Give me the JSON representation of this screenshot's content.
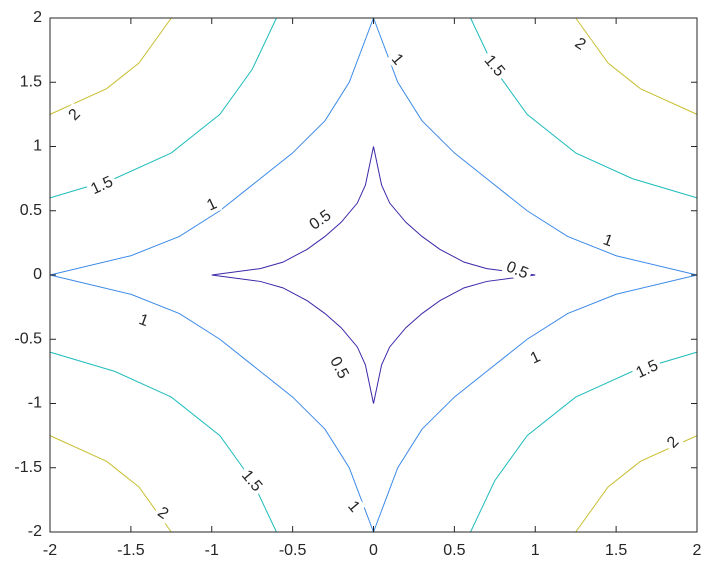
{
  "chart_data": {
    "type": "contour",
    "xlim": [
      -2,
      2
    ],
    "ylim": [
      -2,
      2
    ],
    "xticks": [
      -2,
      -1.5,
      -1,
      -0.5,
      0,
      0.5,
      1,
      1.5,
      2
    ],
    "yticks": [
      -2,
      -1.5,
      -1,
      -0.5,
      0,
      0.5,
      1,
      1.5,
      2
    ],
    "series": [
      {
        "level": 0.5,
        "color": "#3e26a8",
        "x": [
          0,
          0.05,
          0.1,
          0.2,
          0.3,
          0.41,
          0.56,
          0.7,
          1,
          0.7,
          0.56,
          0.41,
          0.3,
          0.2,
          0.1,
          0.05,
          0,
          -0.05,
          -0.1,
          -0.2,
          -0.3,
          -0.41,
          -0.56,
          -0.7,
          -1,
          -0.7,
          -0.56,
          -0.41,
          -0.3,
          -0.2,
          -0.1,
          -0.05,
          0
        ],
        "y": [
          1,
          0.7,
          0.56,
          0.41,
          0.3,
          0.2,
          0.1,
          0.05,
          0,
          -0.05,
          -0.1,
          -0.2,
          -0.3,
          -0.41,
          -0.56,
          -0.7,
          -1,
          -0.7,
          -0.56,
          -0.41,
          -0.3,
          -0.2,
          -0.1,
          -0.05,
          0,
          0.05,
          0.1,
          0.2,
          0.3,
          0.41,
          0.56,
          0.7,
          1
        ]
      },
      {
        "level": 1,
        "color": "#3c8ae8",
        "x": [
          0,
          0.15,
          0.3,
          0.5,
          0.7,
          0.95,
          1.2,
          1.5,
          2,
          1.5,
          1.2,
          0.95,
          0.7,
          0.5,
          0.3,
          0.15,
          0,
          -0.15,
          -0.3,
          -0.5,
          -0.7,
          -0.95,
          -1.2,
          -1.5,
          -2,
          -1.5,
          -1.2,
          -0.95,
          -0.7,
          -0.5,
          -0.3,
          -0.15,
          0
        ],
        "y": [
          2,
          1.5,
          1.2,
          0.95,
          0.75,
          0.5,
          0.3,
          0.15,
          0,
          -0.15,
          -0.3,
          -0.5,
          -0.75,
          -0.95,
          -1.2,
          -1.5,
          -2,
          -1.5,
          -1.2,
          -0.95,
          -0.75,
          -0.5,
          -0.3,
          -0.15,
          0,
          0.15,
          0.3,
          0.5,
          0.75,
          0.95,
          1.2,
          1.5,
          2
        ]
      },
      {
        "level": 1.5,
        "color": "#1fbcbc",
        "x": [
          0.6,
          0.75,
          0.95,
          1.25,
          1.6,
          2,
          null,
          2,
          1.6,
          1.25,
          0.95,
          0.75,
          0.6,
          null,
          -0.6,
          -0.75,
          -0.95,
          -1.25,
          -1.6,
          -2,
          null,
          -2,
          -1.6,
          -1.25,
          -0.95,
          -0.75,
          -0.6
        ],
        "y": [
          2,
          1.6,
          1.25,
          0.95,
          0.75,
          0.6,
          null,
          -0.6,
          -0.75,
          -0.95,
          -1.25,
          -1.6,
          -2,
          null,
          -2,
          -1.6,
          -1.25,
          -0.95,
          -0.75,
          -0.6,
          null,
          0.6,
          0.75,
          0.95,
          1.25,
          1.6,
          2
        ]
      },
      {
        "level": 2,
        "color": "#c8bf32",
        "x": [
          1.25,
          1.45,
          1.65,
          2,
          null,
          2,
          1.65,
          1.45,
          1.25,
          null,
          -1.25,
          -1.45,
          -1.65,
          -2,
          null,
          -2,
          -1.65,
          -1.45,
          -1.25
        ],
        "y": [
          2,
          1.65,
          1.45,
          1.25,
          null,
          -1.25,
          -1.45,
          -1.65,
          -2,
          null,
          -2,
          -1.65,
          -1.45,
          -1.25,
          null,
          1.25,
          1.45,
          1.65,
          2
        ]
      }
    ]
  }
}
